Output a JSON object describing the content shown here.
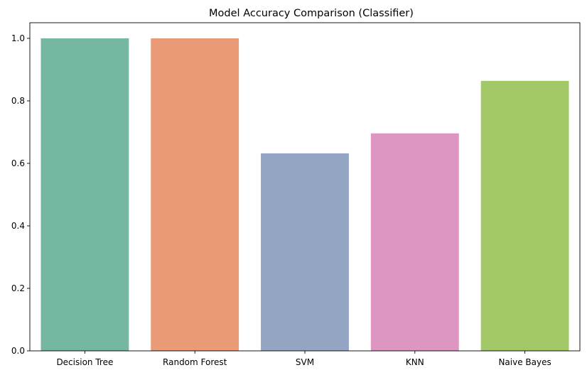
{
  "chart_data": {
    "type": "bar",
    "title": "Model Accuracy Comparison (Classifier)",
    "xlabel": "",
    "ylabel": "",
    "categories": [
      "Decision Tree",
      "Random Forest",
      "SVM",
      "KNN",
      "Naive Bayes"
    ],
    "values": [
      1.0,
      1.0,
      0.632,
      0.696,
      0.864
    ],
    "colors": [
      "#76b7a2",
      "#e99a77",
      "#94a4c3",
      "#dc96c1",
      "#a2c868"
    ],
    "ylim": [
      0,
      1.05
    ],
    "yticks": [
      0.0,
      0.2,
      0.4,
      0.6,
      0.8,
      1.0
    ],
    "ytick_labels": [
      "0.0",
      "0.2",
      "0.4",
      "0.6",
      "0.8",
      "1.0"
    ],
    "grid": false,
    "legend": "none"
  }
}
